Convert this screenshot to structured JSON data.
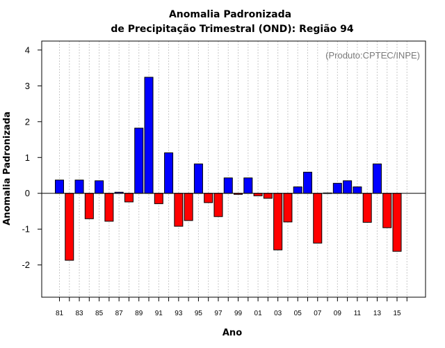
{
  "chart_data": {
    "type": "bar",
    "title_line1": "Anomalia Padronizada",
    "title_line2": "de Precipitação Trimestral (OND): Região 94",
    "annotation": "(Produto:CPTEC/INPE)",
    "xlabel": "Ano",
    "ylabel": "Anomalia Padronizada",
    "ylim": [
      -2.9,
      4.25
    ],
    "yticks": [
      -2,
      -1,
      0,
      1,
      2,
      3,
      4
    ],
    "ytick_labels": [
      "-2",
      "-1",
      "0",
      "1",
      "2",
      "3",
      "4"
    ],
    "tick_labels": [
      "81",
      "83",
      "85",
      "87",
      "89",
      "91",
      "93",
      "95",
      "97",
      "99",
      "01",
      "03",
      "05",
      "07",
      "09",
      "11",
      "13",
      "15"
    ],
    "categories": [
      "81",
      "82",
      "83",
      "84",
      "85",
      "86",
      "87",
      "88",
      "89",
      "90",
      "91",
      "92",
      "93",
      "94",
      "95",
      "96",
      "97",
      "98",
      "99",
      "00",
      "01",
      "02",
      "03",
      "04",
      "05",
      "06",
      "07",
      "08",
      "09",
      "10",
      "11",
      "12",
      "13",
      "14",
      "15"
    ],
    "values": [
      0.37,
      -1.87,
      0.37,
      -0.71,
      0.35,
      -0.78,
      0.03,
      -0.24,
      1.82,
      3.24,
      -0.29,
      1.13,
      -0.92,
      -0.76,
      0.82,
      -0.26,
      -0.65,
      0.43,
      -0.03,
      0.43,
      -0.07,
      -0.14,
      -1.58,
      -0.8,
      0.18,
      0.59,
      -1.39,
      0.01,
      0.28,
      0.35,
      0.18,
      -0.81,
      0.82,
      -0.96,
      -1.62
    ],
    "colors": {
      "positive": "#0000ff",
      "negative": "#ff0000",
      "grid": "#c8c8c8",
      "annotation": "#7a7a7a"
    }
  }
}
